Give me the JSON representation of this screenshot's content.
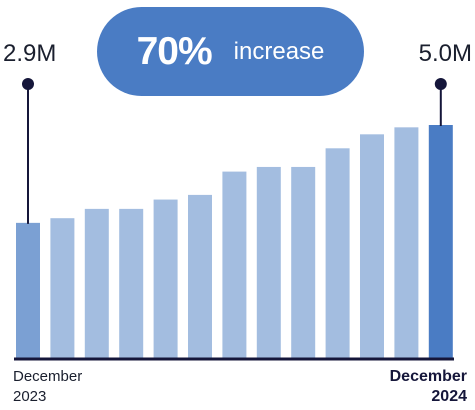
{
  "highlight": {
    "value": "70%",
    "label": "increase"
  },
  "start": {
    "value_label": "2.9M",
    "period_line1": "December",
    "period_line2": "2023"
  },
  "end": {
    "value_label": "5.0M",
    "period_line1": "December",
    "period_line2": "2024"
  },
  "colors": {
    "bar": "#a3bde0",
    "bar_start": "#7ba0d3",
    "bar_end": "#4a7cc4",
    "axis": "#15163a",
    "marker": "#15163a",
    "pill": "#4a7cc4"
  },
  "chart_data": {
    "type": "bar",
    "categories": [
      "",
      "",
      "",
      "",
      "",
      "",
      "",
      "",
      "",
      "",
      "",
      "",
      ""
    ],
    "values": [
      2.9,
      3.0,
      3.2,
      3.2,
      3.4,
      3.5,
      4.0,
      4.1,
      4.1,
      4.5,
      4.8,
      4.95,
      5.0
    ],
    "ylim": [
      0,
      5.0
    ],
    "grid": false,
    "legend": "none"
  }
}
